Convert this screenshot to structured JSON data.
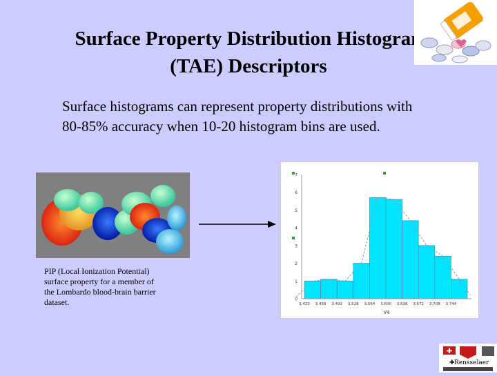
{
  "slide": {
    "title_line1": "Surface Property Distribution Histogram",
    "title_line2": "(TAE) Descriptors",
    "body_line1": "Surface histograms can represent property distributions with",
    "body_line2": "80-85% accuracy when 10-20 histogram bins are used.",
    "caption_line1": "PIP (Local Ionization Potential)",
    "caption_line2": "surface property for a member of",
    "caption_line3": "the Lombardo blood-brain barrier",
    "caption_line4": "dataset.",
    "logo_text": "Rensselaer"
  },
  "colors": {
    "background": "#ccccff",
    "bar_fill": "#00e5ff",
    "bar_stroke": "#4a8aa6",
    "curve": "#7f9fb5"
  },
  "chart_data": {
    "type": "bar",
    "categories": [
      "3.420",
      "3.456",
      "3.492",
      "3.528",
      "3.564",
      "3.600",
      "3.636",
      "3.672",
      "3.708",
      "3.744"
    ],
    "values": [
      1,
      1.1,
      1,
      2,
      5.7,
      5.6,
      4.4,
      3,
      2.4,
      1.1
    ],
    "xlabel": "V4",
    "ylabel": "",
    "ylim": [
      0,
      7
    ],
    "yticks": [
      "0",
      "1",
      "2",
      "3",
      "4",
      "5",
      "6",
      "7"
    ],
    "fitted_curve": true
  }
}
